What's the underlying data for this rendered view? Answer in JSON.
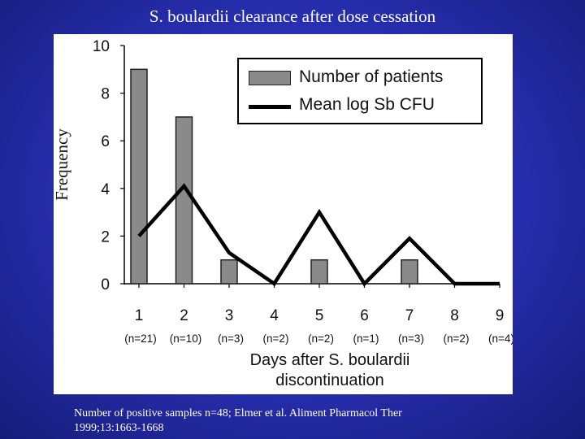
{
  "slide_title": "S. boulardii clearance after dose cessation",
  "caption_lines": [
    "Number of positive samples n=48; Elmer et al. Aliment Pharmacol Ther",
    "1999;13:1663-1668"
  ],
  "chart_data": {
    "type": "bar",
    "title": "",
    "xlabel_lines": [
      "Days after S. boulardii",
      "discontinuation"
    ],
    "ylabel": "Frequency",
    "ylim": [
      0,
      10
    ],
    "yticks": [
      0,
      2,
      4,
      6,
      8,
      10
    ],
    "categories": [
      "1",
      "2",
      "3",
      "4",
      "5",
      "6",
      "7",
      "8",
      "9"
    ],
    "n_labels": [
      "(n=21)",
      "(n=10)",
      "(n=3)",
      "(n=2)",
      "(n=2)",
      "(n=1)",
      "(n=3)",
      "(n=2)",
      "(n=4)"
    ],
    "series": [
      {
        "name": "Number of patients",
        "kind": "bar",
        "color": "#8a8a8a",
        "values": [
          9,
          7,
          1,
          0,
          1,
          0,
          1,
          0,
          0
        ]
      },
      {
        "name": "Mean log Sb CFU",
        "kind": "line",
        "color": "#000000",
        "values": [
          2,
          4.1,
          1.3,
          0,
          3,
          0,
          1.9,
          0,
          0
        ]
      }
    ],
    "legend_position": "top-right",
    "grid": false
  }
}
